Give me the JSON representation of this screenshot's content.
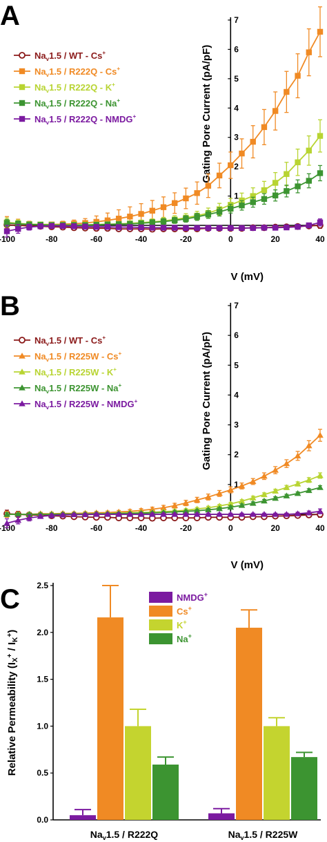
{
  "panels": {
    "A": {
      "letter": "A"
    },
    "B": {
      "letter": "B"
    },
    "C": {
      "letter": "C"
    }
  },
  "chart_data": [
    {
      "panel": "A",
      "type": "line",
      "xlabel": "V (mV)",
      "ylabel": "Gating Pore Current (pA/pF)",
      "xlim": [
        -100,
        40
      ],
      "ylim": [
        0,
        7
      ],
      "x_ticks": [
        -100,
        -80,
        -60,
        -40,
        -20,
        0,
        20,
        40
      ],
      "y_ticks": [
        1,
        2,
        3,
        4,
        5,
        6,
        7
      ],
      "x": [
        -100,
        -95,
        -90,
        -85,
        -80,
        -75,
        -70,
        -65,
        -60,
        -55,
        -50,
        -45,
        -40,
        -35,
        -30,
        -25,
        -20,
        -15,
        -10,
        -5,
        0,
        5,
        10,
        15,
        20,
        25,
        30,
        35,
        40
      ],
      "legend_position": "top-left",
      "series": [
        {
          "name_main": "Na",
          "name_sub": "v",
          "name_rest": "1.5 / WT - Cs",
          "name_sup": "+",
          "color": "#8b1a1a",
          "marker": "circle-open",
          "values": [
            0.02,
            0.0,
            -0.02,
            -0.03,
            -0.05,
            -0.06,
            -0.08,
            -0.09,
            -0.1,
            -0.1,
            -0.12,
            -0.12,
            -0.12,
            -0.13,
            -0.12,
            -0.12,
            -0.12,
            -0.12,
            -0.1,
            -0.1,
            -0.1,
            -0.1,
            -0.08,
            -0.08,
            -0.06,
            -0.05,
            -0.04,
            -0.02,
            0.0
          ],
          "errors": [
            0.12,
            0.1,
            0.08,
            0.05,
            0.05,
            0.04,
            0.04,
            0.04,
            0.05,
            0.05,
            0.05,
            0.05,
            0.05,
            0.05,
            0.05,
            0.05,
            0.05,
            0.05,
            0.05,
            0.05,
            0.05,
            0.05,
            0.05,
            0.05,
            0.05,
            0.05,
            0.06,
            0.07,
            0.1
          ]
        },
        {
          "name_main": "Na",
          "name_sub": "v",
          "name_rest": "1.5 / R222Q - Cs",
          "name_sup": "+",
          "color": "#f08a24",
          "marker": "square",
          "values": [
            0.1,
            0.06,
            0.04,
            0.03,
            0.03,
            0.04,
            0.06,
            0.08,
            0.12,
            0.17,
            0.23,
            0.3,
            0.39,
            0.5,
            0.62,
            0.76,
            0.92,
            1.1,
            1.35,
            1.7,
            2.05,
            2.45,
            2.85,
            3.35,
            3.9,
            4.55,
            5.1,
            5.9,
            6.6
          ],
          "errors": [
            0.2,
            0.15,
            0.1,
            0.08,
            0.08,
            0.1,
            0.12,
            0.15,
            0.2,
            0.25,
            0.3,
            0.33,
            0.35,
            0.35,
            0.35,
            0.35,
            0.35,
            0.38,
            0.4,
            0.42,
            0.45,
            0.5,
            0.55,
            0.6,
            0.65,
            0.7,
            0.75,
            0.8,
            0.85
          ]
        },
        {
          "name_main": "Na",
          "name_sub": "v",
          "name_rest": "1.5 / R222Q - K",
          "name_sup": "+",
          "color": "#b8d432",
          "marker": "square",
          "values": [
            0.1,
            0.07,
            0.04,
            0.03,
            0.02,
            0.02,
            0.02,
            0.02,
            0.03,
            0.04,
            0.05,
            0.07,
            0.09,
            0.12,
            0.15,
            0.2,
            0.26,
            0.33,
            0.42,
            0.55,
            0.7,
            0.85,
            1.0,
            1.2,
            1.45,
            1.75,
            2.15,
            2.55,
            3.05
          ],
          "errors": [
            0.15,
            0.12,
            0.08,
            0.06,
            0.05,
            0.05,
            0.05,
            0.05,
            0.05,
            0.06,
            0.07,
            0.08,
            0.09,
            0.1,
            0.12,
            0.13,
            0.14,
            0.15,
            0.17,
            0.2,
            0.22,
            0.25,
            0.28,
            0.3,
            0.35,
            0.4,
            0.45,
            0.5,
            0.55
          ]
        },
        {
          "name_main": "Na",
          "name_sub": "v",
          "name_rest": "1.5 / R222Q - Na",
          "name_sup": "+",
          "color": "#3c9431",
          "marker": "square",
          "values": [
            0.08,
            0.05,
            0.03,
            0.02,
            0.01,
            0.01,
            0.01,
            0.01,
            0.02,
            0.03,
            0.04,
            0.05,
            0.07,
            0.1,
            0.13,
            0.17,
            0.22,
            0.29,
            0.37,
            0.46,
            0.57,
            0.68,
            0.79,
            0.9,
            1.02,
            1.17,
            1.33,
            1.52,
            1.78
          ],
          "errors": [
            0.12,
            0.1,
            0.07,
            0.05,
            0.05,
            0.05,
            0.05,
            0.05,
            0.05,
            0.05,
            0.06,
            0.07,
            0.08,
            0.09,
            0.1,
            0.1,
            0.11,
            0.12,
            0.13,
            0.14,
            0.15,
            0.16,
            0.17,
            0.18,
            0.19,
            0.2,
            0.22,
            0.24,
            0.26
          ]
        },
        {
          "name_main": "Na",
          "name_sub": "v",
          "name_rest": "1.5 / R222Q - NMDG",
          "name_sup": "+",
          "color": "#7b1aa0",
          "marker": "square",
          "values": [
            -0.2,
            -0.12,
            -0.06,
            -0.03,
            -0.02,
            -0.02,
            -0.03,
            -0.04,
            -0.05,
            -0.05,
            -0.06,
            -0.06,
            -0.07,
            -0.08,
            -0.08,
            -0.08,
            -0.09,
            -0.09,
            -0.09,
            -0.09,
            -0.09,
            -0.09,
            -0.09,
            -0.08,
            -0.08,
            -0.07,
            -0.05,
            0.0,
            0.1
          ],
          "errors": [
            0.2,
            0.15,
            0.1,
            0.05,
            0.05,
            0.05,
            0.05,
            0.05,
            0.05,
            0.05,
            0.05,
            0.05,
            0.05,
            0.05,
            0.05,
            0.05,
            0.05,
            0.05,
            0.05,
            0.05,
            0.05,
            0.05,
            0.05,
            0.05,
            0.05,
            0.05,
            0.06,
            0.08,
            0.12
          ]
        }
      ]
    },
    {
      "panel": "B",
      "type": "line",
      "xlabel": "V (mV)",
      "ylabel": "Gating Pore Current (pA/pF)",
      "xlim": [
        -100,
        40
      ],
      "ylim": [
        0,
        7
      ],
      "x_ticks": [
        -100,
        -80,
        -60,
        -40,
        -20,
        0,
        20,
        40
      ],
      "y_ticks": [
        1,
        2,
        3,
        4,
        5,
        6,
        7
      ],
      "x": [
        -100,
        -95,
        -90,
        -85,
        -80,
        -75,
        -70,
        -65,
        -60,
        -55,
        -50,
        -45,
        -40,
        -35,
        -30,
        -25,
        -20,
        -15,
        -10,
        -5,
        0,
        5,
        10,
        15,
        20,
        25,
        30,
        35,
        40
      ],
      "legend_position": "top-left",
      "series": [
        {
          "name_main": "Na",
          "name_sub": "v",
          "name_rest": "1.5 / WT - Cs",
          "name_sup": "+",
          "color": "#8b1a1a",
          "marker": "circle-open",
          "values": [
            0.02,
            0.0,
            -0.02,
            -0.03,
            -0.05,
            -0.06,
            -0.08,
            -0.09,
            -0.1,
            -0.1,
            -0.12,
            -0.12,
            -0.12,
            -0.13,
            -0.12,
            -0.12,
            -0.12,
            -0.12,
            -0.1,
            -0.1,
            -0.1,
            -0.1,
            -0.08,
            -0.08,
            -0.06,
            -0.05,
            -0.04,
            -0.02,
            0.0
          ],
          "errors": [
            0.12,
            0.1,
            0.08,
            0.05,
            0.05,
            0.04,
            0.04,
            0.04,
            0.05,
            0.05,
            0.05,
            0.05,
            0.05,
            0.05,
            0.05,
            0.05,
            0.05,
            0.05,
            0.05,
            0.05,
            0.05,
            0.05,
            0.05,
            0.05,
            0.05,
            0.05,
            0.06,
            0.07,
            0.1
          ]
        },
        {
          "name_main": "Na",
          "name_sub": "v",
          "name_rest": "1.5 / R225W - Cs",
          "name_sup": "+",
          "color": "#f08a24",
          "marker": "triangle",
          "values": [
            0.0,
            0.0,
            0.0,
            0.02,
            0.02,
            0.03,
            0.03,
            0.04,
            0.05,
            0.06,
            0.08,
            0.1,
            0.13,
            0.17,
            0.22,
            0.29,
            0.38,
            0.48,
            0.58,
            0.7,
            0.82,
            0.95,
            1.1,
            1.28,
            1.48,
            1.7,
            1.96,
            2.3,
            2.65
          ],
          "errors": [
            0.1,
            0.08,
            0.06,
            0.05,
            0.05,
            0.05,
            0.05,
            0.05,
            0.05,
            0.05,
            0.05,
            0.06,
            0.06,
            0.07,
            0.08,
            0.08,
            0.09,
            0.09,
            0.1,
            0.1,
            0.1,
            0.1,
            0.1,
            0.11,
            0.12,
            0.13,
            0.15,
            0.17,
            0.2
          ]
        },
        {
          "name_main": "Na",
          "name_sub": "v",
          "name_rest": "1.5 / R225W - K",
          "name_sup": "+",
          "color": "#b8d432",
          "marker": "triangle",
          "values": [
            0.0,
            0.0,
            0.0,
            0.0,
            0.01,
            0.01,
            0.01,
            0.02,
            0.02,
            0.03,
            0.04,
            0.05,
            0.06,
            0.07,
            0.09,
            0.11,
            0.14,
            0.18,
            0.22,
            0.28,
            0.35,
            0.44,
            0.55,
            0.66,
            0.78,
            0.9,
            1.02,
            1.15,
            1.3
          ],
          "errors": [
            0.06,
            0.05,
            0.05,
            0.04,
            0.04,
            0.04,
            0.04,
            0.04,
            0.04,
            0.04,
            0.04,
            0.04,
            0.04,
            0.04,
            0.04,
            0.05,
            0.05,
            0.05,
            0.05,
            0.05,
            0.05,
            0.05,
            0.06,
            0.06,
            0.06,
            0.07,
            0.07,
            0.08,
            0.09
          ]
        },
        {
          "name_main": "Na",
          "name_sub": "v",
          "name_rest": "1.5 / R225W - Na",
          "name_sup": "+",
          "color": "#3c9431",
          "marker": "triangle",
          "values": [
            0.0,
            0.0,
            0.0,
            0.0,
            0.0,
            0.01,
            0.01,
            0.01,
            0.02,
            0.02,
            0.03,
            0.03,
            0.04,
            0.05,
            0.06,
            0.08,
            0.1,
            0.12,
            0.15,
            0.19,
            0.24,
            0.3,
            0.37,
            0.45,
            0.54,
            0.62,
            0.7,
            0.8,
            0.9
          ],
          "errors": [
            0.05,
            0.04,
            0.04,
            0.04,
            0.04,
            0.04,
            0.04,
            0.04,
            0.04,
            0.04,
            0.04,
            0.04,
            0.04,
            0.04,
            0.04,
            0.04,
            0.04,
            0.04,
            0.04,
            0.04,
            0.05,
            0.05,
            0.05,
            0.05,
            0.05,
            0.05,
            0.05,
            0.06,
            0.06
          ]
        },
        {
          "name_main": "Na",
          "name_sub": "v",
          "name_rest": "1.5 / R225W - NMDG",
          "name_sup": "+",
          "color": "#7b1aa0",
          "marker": "triangle",
          "values": [
            -0.3,
            -0.2,
            -0.12,
            -0.07,
            -0.04,
            -0.02,
            -0.01,
            -0.01,
            0.0,
            0.0,
            0.0,
            0.0,
            0.0,
            0.0,
            0.0,
            0.0,
            0.0,
            0.0,
            0.0,
            0.0,
            0.0,
            0.0,
            0.0,
            0.0,
            0.0,
            0.0,
            0.02,
            0.05,
            0.1
          ],
          "errors": [
            0.15,
            0.12,
            0.1,
            0.06,
            0.05,
            0.04,
            0.04,
            0.04,
            0.04,
            0.04,
            0.04,
            0.04,
            0.04,
            0.04,
            0.04,
            0.04,
            0.04,
            0.04,
            0.04,
            0.04,
            0.04,
            0.04,
            0.04,
            0.04,
            0.04,
            0.04,
            0.05,
            0.06,
            0.08
          ]
        }
      ]
    },
    {
      "panel": "C",
      "type": "bar",
      "ylabel_main": "Relative Permeability (I",
      "ylabel_sub1": "X",
      "ylabel_sup1": "+",
      "ylabel_mid": " / I",
      "ylabel_sub2": "K",
      "ylabel_sup2": "+",
      "ylabel_end": ")",
      "ylim": [
        0,
        2.5
      ],
      "y_ticks": [
        "0.0",
        "0.5",
        "1.0",
        "1.5",
        "2.0",
        "2.5"
      ],
      "legend_position": "top-center",
      "groups": [
        {
          "main": "Na",
          "sub": "v",
          "rest": "1.5 / R222Q"
        },
        {
          "main": "Na",
          "sub": "v",
          "rest": "1.5 / R225W"
        }
      ],
      "series": [
        {
          "name": "NMDG",
          "sup": "+",
          "color": "#7b1aa0",
          "values": [
            0.05,
            0.07
          ],
          "errors": [
            0.06,
            0.05
          ]
        },
        {
          "name": "Cs",
          "sup": "+",
          "color": "#f08a24",
          "values": [
            2.16,
            2.05
          ],
          "errors": [
            0.34,
            0.19
          ]
        },
        {
          "name": "K",
          "sup": "+",
          "color": "#c4d42f",
          "values": [
            1.0,
            1.0
          ],
          "errors": [
            0.18,
            0.09
          ]
        },
        {
          "name": "Na",
          "sup": "+",
          "color": "#3c9431",
          "values": [
            0.59,
            0.67
          ],
          "errors": [
            0.08,
            0.05
          ]
        }
      ]
    }
  ]
}
